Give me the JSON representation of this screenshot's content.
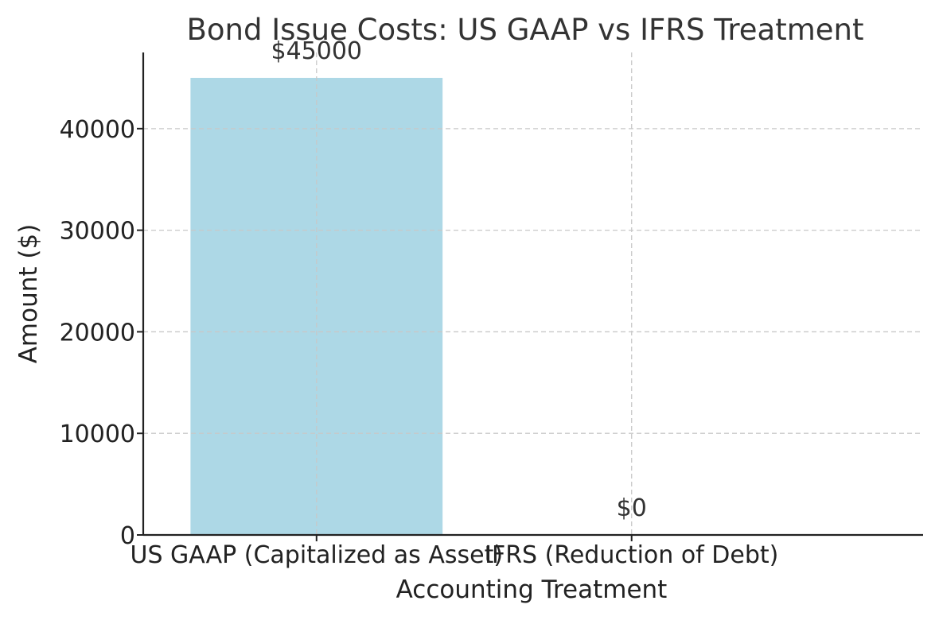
{
  "chart_data": {
    "type": "bar",
    "title": "Bond Issue Costs: US GAAP vs IFRS Treatment",
    "xlabel": "Accounting Treatment",
    "ylabel": "Amount ($)",
    "categories": [
      "US GAAP (Capitalized as Asset)",
      "IFRS (Reduction of Debt)"
    ],
    "values": [
      45000,
      0
    ],
    "data_labels": [
      "$45000",
      "$0"
    ],
    "ylim": [
      0,
      47500
    ],
    "yticks": [
      0,
      10000,
      20000,
      30000,
      40000
    ],
    "ytick_labels": [
      "0",
      "10000",
      "20000",
      "30000",
      "40000"
    ],
    "grid": true,
    "legend": "none",
    "colors": {
      "bar": "#add8e6",
      "grid": "#c8c8c8",
      "axis": "#222222",
      "text": "#333333"
    }
  }
}
